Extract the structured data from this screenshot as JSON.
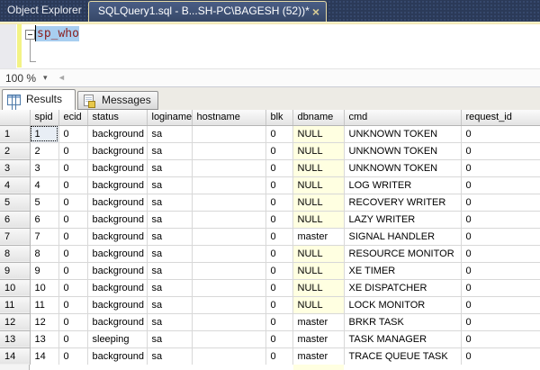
{
  "tab_bar": {
    "object_explorer_tab": "Object Explorer",
    "document_tab": "SQLQuery1.sql - B...SH-PC\\BAGESH (52))*",
    "close_glyph": "×"
  },
  "editor": {
    "code_line": "sp_who"
  },
  "zoom_control": {
    "value": "100 %",
    "dropdown_glyph": "▾",
    "scroll_left_glyph": "◄"
  },
  "results_pane": {
    "tabs": [
      {
        "label": "Results",
        "icon": "results-grid-icon",
        "active": true
      },
      {
        "label": "Messages",
        "icon": "messages-page-icon",
        "active": false
      }
    ]
  },
  "results_grid": {
    "columns": [
      "spid",
      "ecid",
      "status",
      "loginame",
      "hostname",
      "blk",
      "dbname",
      "cmd",
      "request_id"
    ],
    "null_text": "NULL",
    "null_color": "#ffffe1",
    "selected_cell": {
      "row": 0,
      "col": 0
    },
    "rows": [
      {
        "row": "1",
        "cells": [
          "1",
          "0",
          "background",
          "sa",
          "",
          "0",
          "NULL",
          "UNKNOWN TOKEN",
          "0"
        ]
      },
      {
        "row": "2",
        "cells": [
          "2",
          "0",
          "background",
          "sa",
          "",
          "0",
          "NULL",
          "UNKNOWN TOKEN",
          "0"
        ]
      },
      {
        "row": "3",
        "cells": [
          "3",
          "0",
          "background",
          "sa",
          "",
          "0",
          "NULL",
          "UNKNOWN TOKEN",
          "0"
        ]
      },
      {
        "row": "4",
        "cells": [
          "4",
          "0",
          "background",
          "sa",
          "",
          "0",
          "NULL",
          "LOG WRITER",
          "0"
        ]
      },
      {
        "row": "5",
        "cells": [
          "5",
          "0",
          "background",
          "sa",
          "",
          "0",
          "NULL",
          "RECOVERY WRITER",
          "0"
        ]
      },
      {
        "row": "6",
        "cells": [
          "6",
          "0",
          "background",
          "sa",
          "",
          "0",
          "NULL",
          "LAZY WRITER",
          "0"
        ]
      },
      {
        "row": "7",
        "cells": [
          "7",
          "0",
          "background",
          "sa",
          "",
          "0",
          "master",
          "SIGNAL HANDLER",
          "0"
        ]
      },
      {
        "row": "8",
        "cells": [
          "8",
          "0",
          "background",
          "sa",
          "",
          "0",
          "NULL",
          "RESOURCE MONITOR",
          "0"
        ]
      },
      {
        "row": "9",
        "cells": [
          "9",
          "0",
          "background",
          "sa",
          "",
          "0",
          "NULL",
          "XE TIMER",
          "0"
        ]
      },
      {
        "row": "10",
        "cells": [
          "10",
          "0",
          "background",
          "sa",
          "",
          "0",
          "NULL",
          "XE DISPATCHER",
          "0"
        ]
      },
      {
        "row": "11",
        "cells": [
          "11",
          "0",
          "background",
          "sa",
          "",
          "0",
          "NULL",
          "LOCK MONITOR",
          "0"
        ]
      },
      {
        "row": "12",
        "cells": [
          "12",
          "0",
          "background",
          "sa",
          "",
          "0",
          "master",
          "BRKR TASK",
          "0"
        ]
      },
      {
        "row": "13",
        "cells": [
          "13",
          "0",
          "sleeping",
          "sa",
          "",
          "0",
          "master",
          "TASK MANAGER",
          "0"
        ]
      },
      {
        "row": "14",
        "cells": [
          "14",
          "0",
          "background",
          "sa",
          "",
          "0",
          "master",
          "TRACE QUEUE TASK",
          "0"
        ]
      }
    ]
  }
}
